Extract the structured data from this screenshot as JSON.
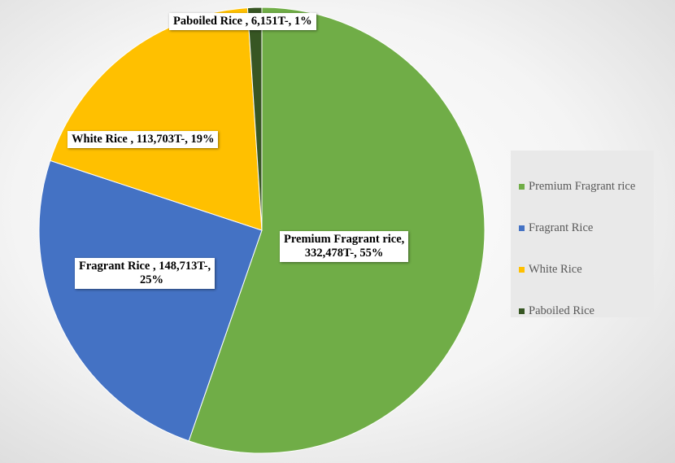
{
  "chart_data": {
    "type": "pie",
    "title": "",
    "slices": [
      {
        "name": "Premium Fragrant rice",
        "value": 332478,
        "percent": 55,
        "color": "#70ad47",
        "label_line1": "Premium Fragrant rice,",
        "label_line2": "332,478T-, 55%"
      },
      {
        "name": "Fragrant Rice",
        "value": 148713,
        "percent": 25,
        "color": "#4472c4",
        "label_line1": "Fragrant Rice ,  148,713T-,",
        "label_line2": "25%"
      },
      {
        "name": "White Rice",
        "value": 113703,
        "percent": 19,
        "color": "#ffc000",
        "label_line1": "White Rice ,  113,703T-, 19%",
        "label_line2": ""
      },
      {
        "name": "Paboiled Rice",
        "value": 6151,
        "percent": 1,
        "color": "#375623",
        "label_line1": "Paboiled Rice ,  6,151T-, 1%",
        "label_line2": ""
      }
    ],
    "legend": {
      "placement": "right",
      "entries": [
        "Premium Fragrant rice",
        "Fragrant Rice",
        "White Rice",
        "Paboiled Rice"
      ]
    }
  }
}
